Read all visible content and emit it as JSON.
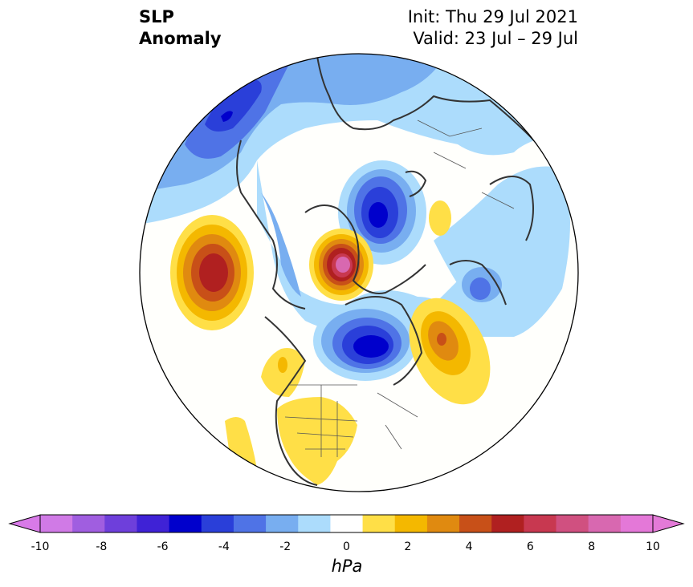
{
  "title": {
    "left_line1": "SLP",
    "left_line2": "Anomaly",
    "init": "Init: Thu 29 Jul 2021",
    "valid": "Valid: 23 Jul – 29 Jul"
  },
  "colorbar": {
    "units": "hPa",
    "ticks": [
      "-10",
      "-8",
      "-6",
      "-4",
      "-2",
      "0",
      "2",
      "4",
      "6",
      "8",
      "10"
    ],
    "levels": [
      -10,
      -9,
      -8,
      -7,
      -6,
      -5,
      -4,
      -3,
      -2,
      -1,
      1,
      2,
      3,
      4,
      5,
      6,
      7,
      8,
      9,
      10
    ],
    "colors": [
      "#d07ae6",
      "#a05ee0",
      "#6e3fdb",
      "#3f22d6",
      "#0000cc",
      "#2a3fd9",
      "#4f73e6",
      "#78aef0",
      "#acdcfc",
      "#ffffff",
      "#ffdf47",
      "#f4b800",
      "#e08a10",
      "#c85018",
      "#b02020",
      "#c83850",
      "#d05080",
      "#d868b0",
      "#e478d8"
    ],
    "under_color": "#d87ae8",
    "over_color": "#e47ad8"
  },
  "map": {
    "projection": "north-polar-stereographic",
    "field": "sea-level-pressure-anomaly",
    "colors": {
      "land_outline": "#333333",
      "border": "#000000",
      "background": "#fffffc"
    }
  }
}
